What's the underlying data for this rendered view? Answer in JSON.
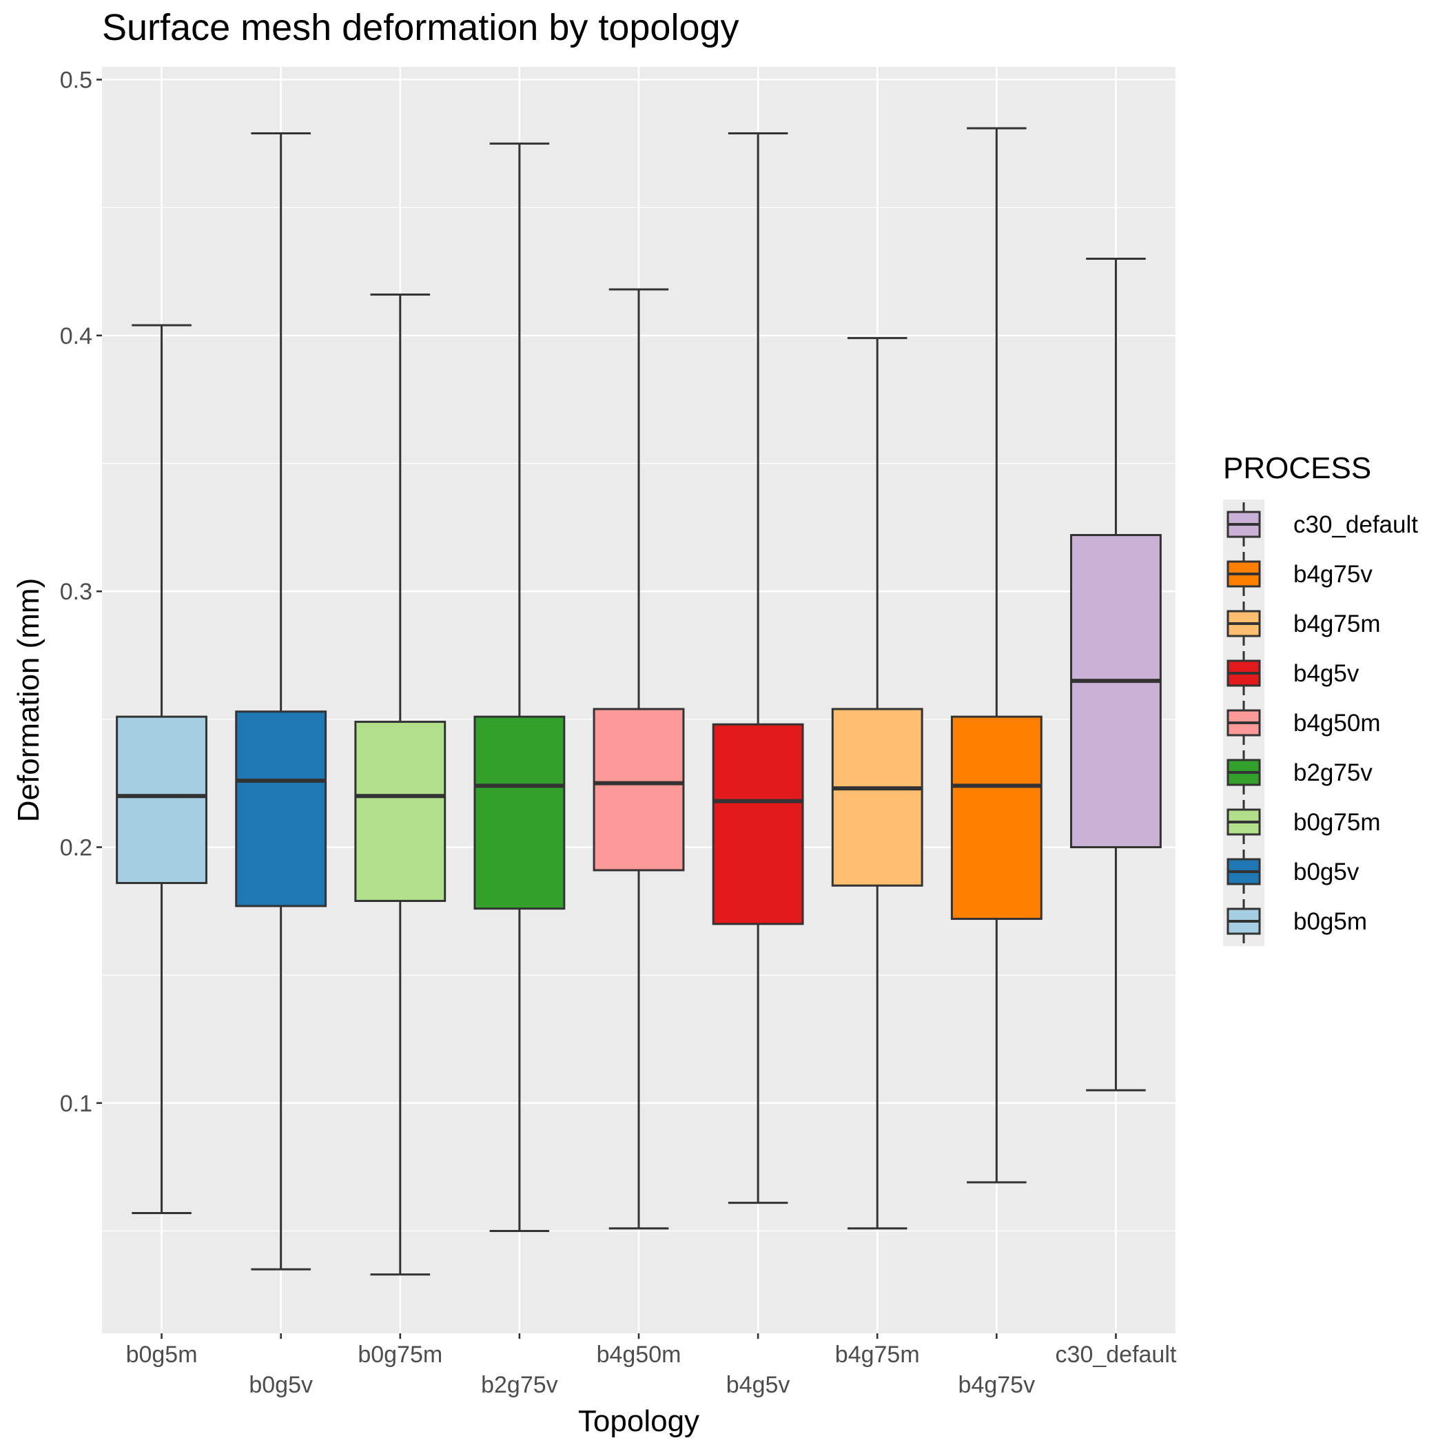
{
  "chart_data": {
    "type": "boxplot",
    "title": "Surface mesh deformation by topology",
    "xlabel": "Topology",
    "ylabel": "Deformation (mm)",
    "ylim": [
      0.01,
      0.505
    ],
    "y_ticks": [
      0.1,
      0.2,
      0.3,
      0.4,
      0.5
    ],
    "y_tick_labels": [
      "0.1",
      "0.2",
      "0.3",
      "0.4",
      "0.5"
    ],
    "grid": true,
    "legend": {
      "title": "PROCESS",
      "position": "right",
      "items": [
        {
          "label": "c30_default",
          "color": "#CAB2D6"
        },
        {
          "label": "b4g75v",
          "color": "#FF7F00"
        },
        {
          "label": "b4g75m",
          "color": "#FDBF6F"
        },
        {
          "label": "b4g5v",
          "color": "#E31A1C"
        },
        {
          "label": "b4g50m",
          "color": "#FB9A99"
        },
        {
          "label": "b2g75v",
          "color": "#33A02C"
        },
        {
          "label": "b0g75m",
          "color": "#B2DF8A"
        },
        {
          "label": "b0g5v",
          "color": "#1F78B4"
        },
        {
          "label": "b0g5m",
          "color": "#A6CEE3"
        }
      ]
    },
    "categories": [
      "b0g5m",
      "b0g5v",
      "b0g75m",
      "b2g75v",
      "b4g50m",
      "b4g5v",
      "b4g75m",
      "b4g75v",
      "c30_default"
    ],
    "boxes": [
      {
        "category": "b0g5m",
        "color": "#A6CEE3",
        "min": 0.057,
        "q1": 0.186,
        "median": 0.22,
        "q3": 0.251,
        "max": 0.404
      },
      {
        "category": "b0g5v",
        "color": "#1F78B4",
        "min": 0.035,
        "q1": 0.177,
        "median": 0.226,
        "q3": 0.253,
        "max": 0.479
      },
      {
        "category": "b0g75m",
        "color": "#B2DF8A",
        "min": 0.033,
        "q1": 0.179,
        "median": 0.22,
        "q3": 0.249,
        "max": 0.416
      },
      {
        "category": "b2g75v",
        "color": "#33A02C",
        "min": 0.05,
        "q1": 0.176,
        "median": 0.224,
        "q3": 0.251,
        "max": 0.475
      },
      {
        "category": "b4g50m",
        "color": "#FB9A99",
        "min": 0.051,
        "q1": 0.191,
        "median": 0.225,
        "q3": 0.254,
        "max": 0.418
      },
      {
        "category": "b4g5v",
        "color": "#E31A1C",
        "min": 0.061,
        "q1": 0.17,
        "median": 0.218,
        "q3": 0.248,
        "max": 0.479
      },
      {
        "category": "b4g75m",
        "color": "#FDBF6F",
        "min": 0.051,
        "q1": 0.185,
        "median": 0.223,
        "q3": 0.254,
        "max": 0.399
      },
      {
        "category": "b4g75v",
        "color": "#FF7F00",
        "min": 0.069,
        "q1": 0.172,
        "median": 0.224,
        "q3": 0.251,
        "max": 0.481
      },
      {
        "category": "c30_default",
        "color": "#CAB2D6",
        "min": 0.105,
        "q1": 0.2,
        "median": 0.265,
        "q3": 0.322,
        "max": 0.43
      }
    ]
  }
}
